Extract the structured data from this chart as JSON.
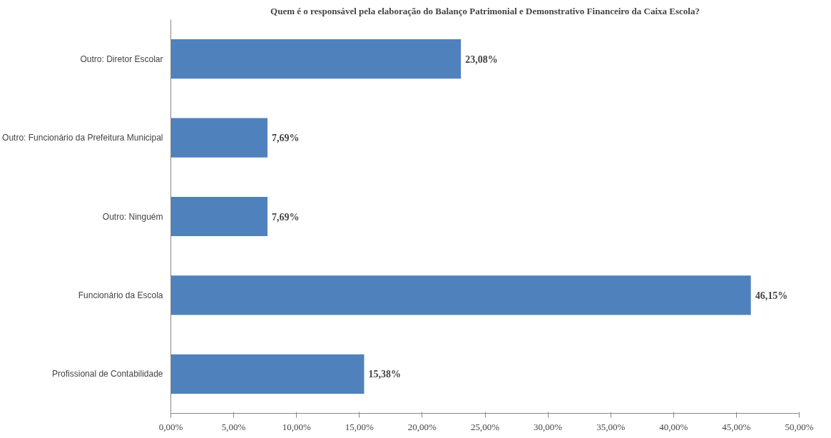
{
  "chart_data": {
    "type": "bar",
    "orientation": "horizontal",
    "title": "Quem é o responsável pela elaboração do Balanço Patrimonial e Demonstrativo Financeiro da Caixa Escola?",
    "categories": [
      "Outro: Diretor Escolar",
      "Outro: Funcionário da Prefeitura Municipal",
      "Outro: Ninguém",
      "Funcionário da Escola",
      "Profissional de Contabilidade"
    ],
    "values": [
      23.08,
      7.69,
      7.69,
      46.15,
      15.38
    ],
    "value_labels": [
      "23,08%",
      "7,69%",
      "7,69%",
      "46,15%",
      "15,38%"
    ],
    "color": "#4f81bd",
    "xlim": [
      0,
      50
    ],
    "xticks": [
      {
        "value": 0,
        "label": "0,00%"
      },
      {
        "value": 5,
        "label": "5,00%"
      },
      {
        "value": 10,
        "label": "10,00%"
      },
      {
        "value": 15,
        "label": "15,00%"
      },
      {
        "value": 20,
        "label": "20,00%"
      },
      {
        "value": 25,
        "label": "25,00%"
      },
      {
        "value": 30,
        "label": "30,00%"
      },
      {
        "value": 35,
        "label": "35,00%"
      },
      {
        "value": 40,
        "label": "40,00%"
      },
      {
        "value": 45,
        "label": "45,00%"
      },
      {
        "value": 50,
        "label": "50,00%"
      }
    ],
    "grid": false
  }
}
